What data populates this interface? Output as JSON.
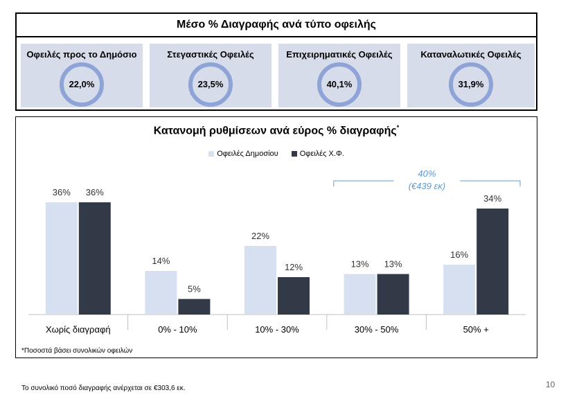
{
  "top_panel": {
    "title": "Μέσο % Διαγραφής ανά τύπο οφειλής",
    "kpis": [
      {
        "label": "Οφειλές προς το Δημόσιο",
        "value": "22,0%"
      },
      {
        "label": "Στεγαστικές Οφειλές",
        "value": "23,5%"
      },
      {
        "label": "Επιχειρηματικές Οφειλές",
        "value": "40,1%"
      },
      {
        "label": "Καταναλωτικές Οφειλές",
        "value": "31,9%"
      }
    ]
  },
  "chart_data": {
    "type": "bar",
    "title": "Κατανομή ρυθμίσεων ανά εύρος % διαγραφής",
    "title_marker": "*",
    "categories": [
      "Χωρίς διαγραφή",
      "0% - 10%",
      "10% - 30%",
      "30% - 50%",
      "50% +"
    ],
    "series": [
      {
        "name": "Οφειλές Δημοσίου",
        "values": [
          36,
          14,
          22,
          13,
          16
        ],
        "labels": [
          "36%",
          "14%",
          "22%",
          "13%",
          "16%"
        ],
        "color": "#d6e0f0"
      },
      {
        "name": "Οφειλές Χ.Φ.",
        "values": [
          36,
          5,
          12,
          13,
          34
        ],
        "labels": [
          "36%",
          "5%",
          "12%",
          "13%",
          "34%"
        ],
        "color": "#323a48"
      }
    ],
    "ylim": [
      0,
      40
    ],
    "grid": false,
    "legend": "top-center",
    "annotation": {
      "line1": "40%",
      "line2": "(€439 εκ)",
      "color": "#5b9bd5"
    }
  },
  "note": "*Ποσοστά βάσει συνολικών οφειλών",
  "footer": "Το συνολικό ποσό διαγραφής ανέρχεται σε €303,6 εκ.",
  "page_number": "10"
}
